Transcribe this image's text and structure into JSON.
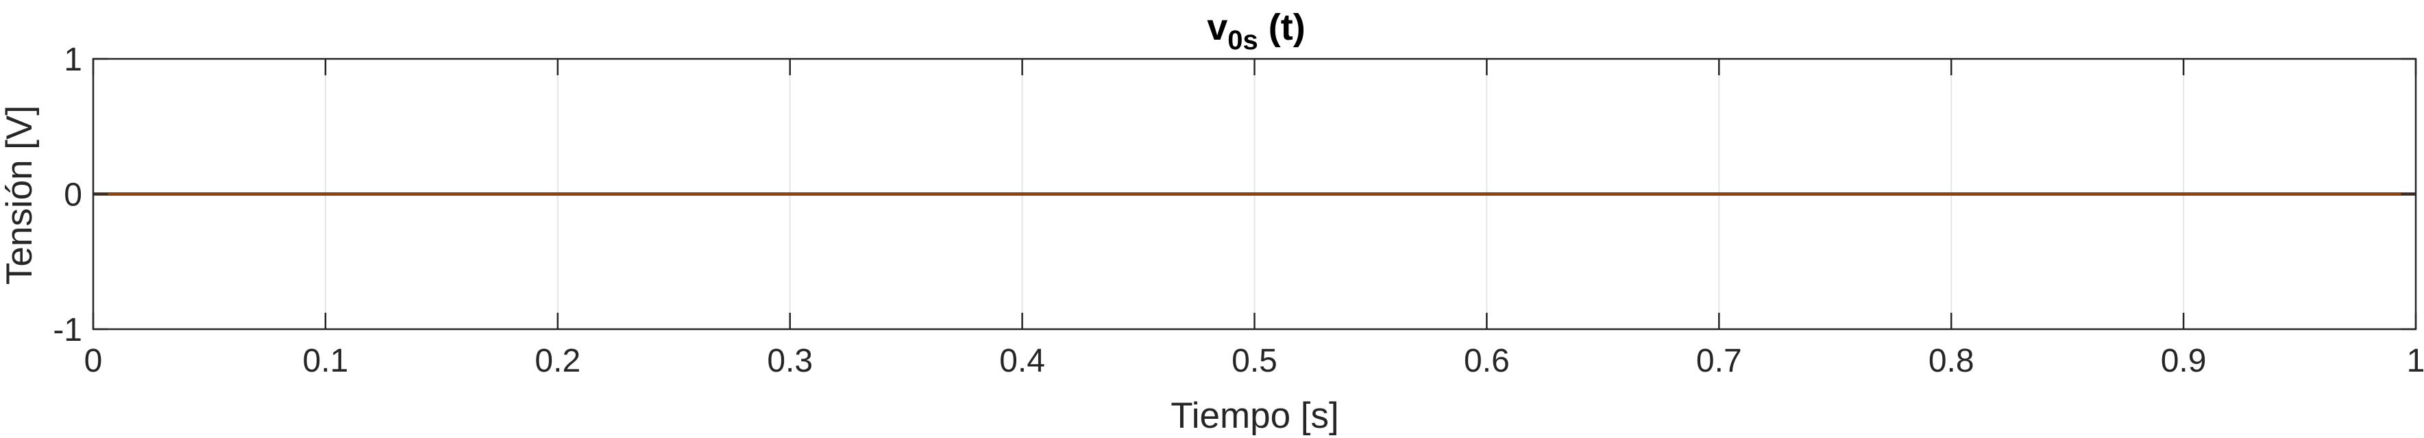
{
  "chart_data": {
    "type": "line",
    "title": {
      "base": "v",
      "subscript": "0s",
      "suffix": " (t)"
    },
    "xlabel": "Tiempo [s]",
    "ylabel": "Tensión [V]",
    "xlim": [
      0,
      1
    ],
    "ylim": [
      -1,
      1
    ],
    "x_ticks": [
      0,
      0.1,
      0.2,
      0.3,
      0.4,
      0.5,
      0.6,
      0.7,
      0.8,
      0.9,
      1
    ],
    "x_tick_labels": [
      "0",
      "0.1",
      "0.2",
      "0.3",
      "0.4",
      "0.5",
      "0.6",
      "0.7",
      "0.8",
      "0.9",
      "1"
    ],
    "y_ticks": [
      -1,
      0,
      1
    ],
    "y_tick_labels": [
      "-1",
      "0",
      "1"
    ],
    "grid": "x-only",
    "series": [
      {
        "color": "#8B4513",
        "x": [
          0,
          1
        ],
        "y": [
          0,
          0
        ]
      }
    ],
    "colors": {
      "axes": "#262626",
      "grid": "#e6e6e6",
      "line": "#8B4513"
    }
  }
}
